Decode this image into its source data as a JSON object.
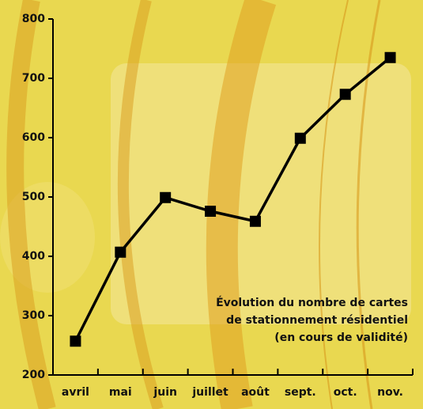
{
  "chart_data": {
    "type": "line",
    "categories": [
      "avril",
      "mai",
      "juin",
      "juillet",
      "août",
      "sept.",
      "oct.",
      "nov."
    ],
    "values": [
      257,
      407,
      499,
      476,
      459,
      599,
      673,
      735
    ],
    "color": "#000000",
    "ylim": [
      200,
      800
    ],
    "yticks": [
      200,
      300,
      400,
      500,
      600,
      700,
      800
    ],
    "annotation": [
      "Évolution du nombre de cartes",
      "de stationnement résidentiel",
      "(en cours de validité)"
    ]
  }
}
